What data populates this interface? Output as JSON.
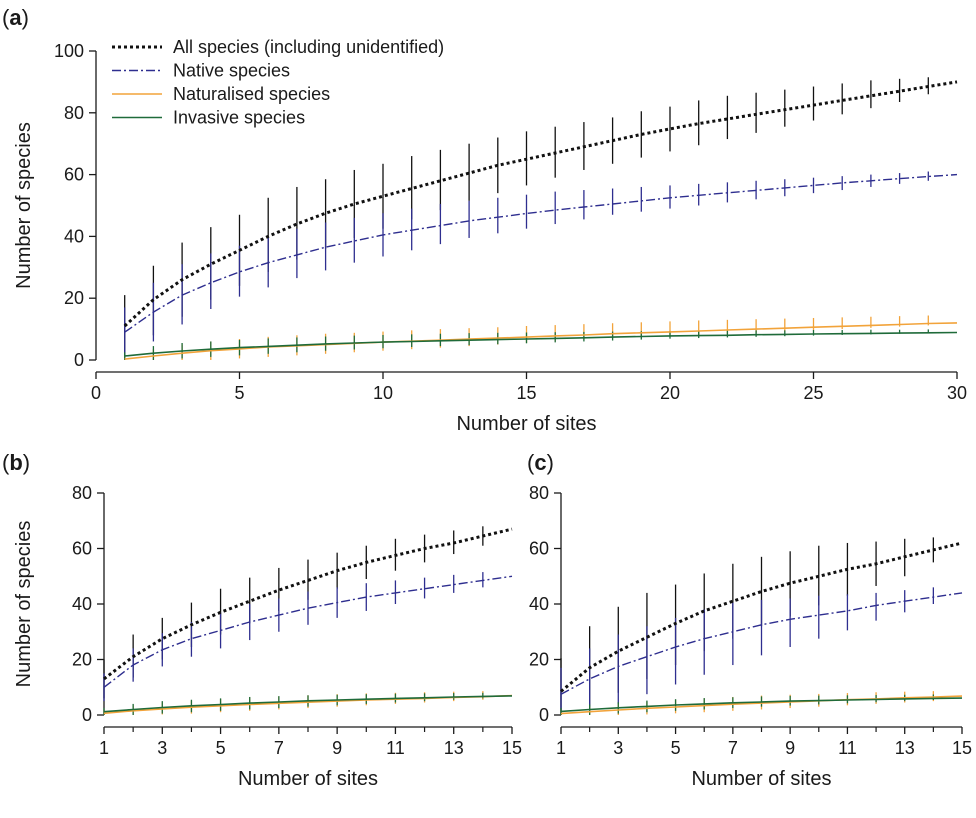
{
  "figure": {
    "colors": {
      "all": "#111111",
      "native": "#2e2e8f",
      "naturalised": "#f2a33a",
      "invasive": "#1f6b3a",
      "axis": "#1a1a1a"
    }
  },
  "chart_data": [
    {
      "panel": "(a)",
      "panel_label": {
        "open": "(",
        "letter": "a",
        "close": ")"
      },
      "type": "line",
      "xlabel": "Number of sites",
      "ylabel": "Number of species",
      "xlim": [
        0,
        30
      ],
      "ylim": [
        0,
        100
      ],
      "xticks": [
        0,
        5,
        10,
        15,
        20,
        25,
        30
      ],
      "yticks": [
        0,
        20,
        40,
        60,
        80,
        100
      ],
      "legend": "top-left",
      "x": [
        1,
        2,
        3,
        4,
        5,
        6,
        7,
        8,
        9,
        10,
        11,
        12,
        13,
        14,
        15,
        16,
        17,
        18,
        19,
        20,
        21,
        22,
        23,
        24,
        25,
        26,
        27,
        28,
        29,
        30
      ],
      "series": [
        {
          "key": "all",
          "name": "All species (including unidentified)",
          "style": "dotted",
          "values": [
            11.0,
            19.5,
            26.0,
            31.0,
            35.5,
            40.0,
            44.0,
            47.5,
            50.5,
            53.0,
            55.5,
            58.0,
            60.5,
            63.0,
            65.0,
            67.0,
            69.0,
            71.0,
            73.0,
            74.8,
            76.5,
            78.0,
            79.5,
            81.0,
            82.5,
            84.0,
            85.5,
            87.0,
            88.5,
            90.0
          ],
          "lower": [
            1.0,
            8.0,
            14.0,
            19.5,
            24.0,
            28.5,
            32.5,
            36.0,
            39.5,
            42.5,
            45.5,
            48.5,
            51.5,
            54.0,
            56.5,
            59.0,
            61.5,
            63.5,
            65.5,
            67.5,
            69.5,
            71.5,
            73.5,
            75.5,
            77.5,
            79.5,
            81.5,
            83.5,
            86.0,
            90.0
          ],
          "upper": [
            21.0,
            30.5,
            38.0,
            43.0,
            47.0,
            52.5,
            56.0,
            58.5,
            61.5,
            63.5,
            66.0,
            68.0,
            70.0,
            72.0,
            74.0,
            75.5,
            77.0,
            78.5,
            80.5,
            82.0,
            84.0,
            85.5,
            86.5,
            87.5,
            88.5,
            89.5,
            90.5,
            91.0,
            91.5,
            90.0
          ]
        },
        {
          "key": "native",
          "name": "Native species",
          "style": "dashdot",
          "values": [
            9.0,
            15.5,
            21.0,
            25.0,
            28.5,
            31.5,
            34.0,
            36.5,
            38.5,
            40.5,
            42.0,
            43.5,
            45.0,
            46.2,
            47.4,
            48.5,
            49.5,
            50.5,
            51.5,
            52.5,
            53.3,
            54.1,
            54.9,
            55.7,
            56.5,
            57.3,
            58.0,
            58.7,
            59.4,
            60.0
          ],
          "lower": [
            0.5,
            6.0,
            11.5,
            16.5,
            20.5,
            23.5,
            26.5,
            29.0,
            31.5,
            33.5,
            35.5,
            37.5,
            39.5,
            41.0,
            42.5,
            44.0,
            45.5,
            47.0,
            48.0,
            49.0,
            50.0,
            51.0,
            52.0,
            53.0,
            54.0,
            55.0,
            56.0,
            57.0,
            58.0,
            60.0
          ],
          "upper": [
            17.0,
            25.0,
            31.0,
            34.5,
            37.0,
            40.0,
            42.5,
            44.5,
            46.0,
            47.5,
            49.0,
            50.5,
            51.5,
            52.5,
            53.5,
            54.5,
            55.0,
            55.5,
            56.0,
            56.5,
            57.0,
            57.5,
            58.0,
            58.5,
            59.0,
            59.5,
            60.0,
            60.5,
            61.0,
            60.0
          ]
        },
        {
          "key": "naturalised",
          "name": "Naturalised species",
          "style": "solid",
          "values": [
            0.3,
            1.3,
            2.2,
            3.0,
            3.6,
            4.2,
            4.6,
            5.0,
            5.4,
            5.8,
            6.1,
            6.4,
            6.8,
            7.1,
            7.4,
            7.8,
            8.1,
            8.5,
            8.8,
            9.1,
            9.4,
            9.7,
            10.0,
            10.3,
            10.6,
            10.9,
            11.2,
            11.5,
            11.8,
            12.0
          ],
          "lower": [
            0.0,
            0.0,
            0.0,
            0.0,
            0.5,
            1.0,
            1.5,
            2.0,
            2.5,
            3.0,
            3.5,
            4.0,
            4.5,
            5.0,
            5.5,
            6.0,
            6.5,
            7.0,
            7.3,
            7.6,
            8.0,
            8.4,
            8.8,
            9.2,
            9.6,
            10.0,
            10.4,
            10.8,
            11.2,
            12.0
          ],
          "upper": [
            1.5,
            3.5,
            5.0,
            6.0,
            6.8,
            7.5,
            8.0,
            8.5,
            8.8,
            9.2,
            9.6,
            10.0,
            10.3,
            10.6,
            11.0,
            11.3,
            11.6,
            11.9,
            12.2,
            12.5,
            12.8,
            13.0,
            13.2,
            13.4,
            13.6,
            13.8,
            14.0,
            14.2,
            14.4,
            12.0
          ]
        },
        {
          "key": "invasive",
          "name": "Invasive species",
          "style": "solid",
          "values": [
            1.3,
            2.2,
            2.9,
            3.5,
            4.0,
            4.4,
            4.8,
            5.2,
            5.5,
            5.8,
            6.0,
            6.2,
            6.4,
            6.6,
            6.8,
            7.0,
            7.2,
            7.4,
            7.6,
            7.8,
            7.9,
            8.0,
            8.2,
            8.3,
            8.4,
            8.5,
            8.6,
            8.7,
            8.8,
            8.9
          ],
          "lower": [
            0.0,
            0.0,
            0.5,
            1.0,
            1.5,
            2.0,
            2.5,
            3.0,
            3.4,
            3.8,
            4.2,
            4.5,
            4.8,
            5.1,
            5.4,
            5.7,
            6.0,
            6.3,
            6.6,
            6.9,
            7.1,
            7.3,
            7.5,
            7.7,
            7.9,
            8.1,
            8.3,
            8.5,
            8.7,
            8.9
          ],
          "upper": [
            2.5,
            4.5,
            5.5,
            6.0,
            6.5,
            7.0,
            7.3,
            7.6,
            7.9,
            8.1,
            8.3,
            8.5,
            8.7,
            8.8,
            8.9,
            9.0,
            9.1,
            9.2,
            9.3,
            9.4,
            9.5,
            9.5,
            9.6,
            9.6,
            9.7,
            9.7,
            9.8,
            9.8,
            9.9,
            8.9
          ]
        }
      ]
    },
    {
      "panel": "(b)",
      "panel_label": {
        "open": "(",
        "letter": "b",
        "close": ")"
      },
      "type": "line",
      "xlabel": "Number of sites",
      "ylabel": "Number of species",
      "xlim": [
        1,
        15
      ],
      "ylim": [
        0,
        80
      ],
      "xticks": [
        1,
        3,
        5,
        7,
        9,
        11,
        13,
        15
      ],
      "xticks_minor": [
        2,
        4,
        6,
        8,
        10,
        12,
        14
      ],
      "yticks": [
        0,
        20,
        40,
        60,
        80
      ],
      "x": [
        1,
        2,
        3,
        4,
        5,
        6,
        7,
        8,
        9,
        10,
        11,
        12,
        13,
        14,
        15
      ],
      "series": [
        {
          "key": "all",
          "style": "dotted",
          "values": [
            13.0,
            21.0,
            27.5,
            32.5,
            37.0,
            41.0,
            45.0,
            48.5,
            52.0,
            55.0,
            57.5,
            60.0,
            62.0,
            64.5,
            67.0
          ],
          "lower": [
            6.0,
            13.5,
            20.0,
            24.5,
            29.0,
            33.0,
            37.5,
            41.5,
            45.5,
            49.0,
            52.0,
            55.0,
            58.0,
            61.0,
            67.0
          ],
          "upper": [
            20.0,
            29.0,
            35.0,
            40.5,
            45.5,
            49.5,
            53.0,
            56.0,
            58.5,
            61.0,
            63.5,
            65.0,
            66.5,
            68.0,
            67.0
          ]
        },
        {
          "key": "native",
          "style": "dashdot",
          "values": [
            10.0,
            18.0,
            23.5,
            27.5,
            30.5,
            33.5,
            36.0,
            38.5,
            40.5,
            42.5,
            44.0,
            45.5,
            47.0,
            48.5,
            50.0
          ],
          "lower": [
            5.0,
            12.0,
            17.5,
            21.0,
            24.0,
            27.0,
            30.0,
            32.5,
            35.0,
            37.5,
            40.0,
            42.0,
            44.0,
            46.0,
            50.0
          ],
          "upper": [
            15.0,
            24.0,
            29.5,
            33.5,
            37.0,
            40.0,
            42.0,
            44.5,
            46.0,
            47.5,
            48.5,
            49.5,
            50.5,
            51.5,
            50.0
          ]
        },
        {
          "key": "naturalised",
          "style": "solid",
          "values": [
            0.6,
            1.5,
            2.2,
            2.8,
            3.3,
            3.8,
            4.2,
            4.6,
            5.0,
            5.4,
            5.7,
            6.0,
            6.3,
            6.6,
            7.0
          ],
          "lower": [
            0.0,
            0.0,
            0.2,
            0.5,
            1.0,
            1.5,
            2.0,
            2.5,
            3.0,
            3.5,
            4.0,
            4.5,
            5.0,
            5.5,
            7.0
          ],
          "upper": [
            2.0,
            3.5,
            4.5,
            5.2,
            5.8,
            6.3,
            6.7,
            7.1,
            7.5,
            7.8,
            8.0,
            8.2,
            8.4,
            8.6,
            7.0
          ]
        },
        {
          "key": "invasive",
          "style": "solid",
          "values": [
            1.2,
            2.0,
            2.7,
            3.3,
            3.8,
            4.3,
            4.7,
            5.1,
            5.4,
            5.7,
            6.0,
            6.2,
            6.5,
            6.7,
            6.9
          ],
          "lower": [
            0.0,
            0.0,
            0.5,
            1.0,
            1.5,
            2.0,
            2.5,
            3.0,
            3.5,
            4.0,
            4.5,
            5.0,
            5.5,
            6.0,
            6.9
          ],
          "upper": [
            2.5,
            4.0,
            5.0,
            5.5,
            6.0,
            6.5,
            6.8,
            7.1,
            7.3,
            7.5,
            7.7,
            7.8,
            7.9,
            8.0,
            6.9
          ]
        }
      ]
    },
    {
      "panel": "(c)",
      "panel_label": {
        "open": "(",
        "letter": "c",
        "close": ")"
      },
      "type": "line",
      "xlabel": "Number of sites",
      "xlim": [
        1,
        15
      ],
      "ylim": [
        0,
        80
      ],
      "xticks": [
        1,
        3,
        5,
        7,
        9,
        11,
        13,
        15
      ],
      "xticks_minor": [
        2,
        4,
        6,
        8,
        10,
        12,
        14
      ],
      "yticks": [
        0,
        20,
        40,
        60,
        80
      ],
      "x": [
        1,
        2,
        3,
        4,
        5,
        6,
        7,
        8,
        9,
        10,
        11,
        12,
        13,
        14,
        15
      ],
      "series": [
        {
          "key": "all",
          "style": "dotted",
          "values": [
            8.5,
            17.0,
            23.0,
            28.0,
            33.0,
            37.5,
            41.0,
            44.5,
            47.5,
            50.0,
            52.5,
            54.5,
            57.0,
            59.5,
            62.0
          ],
          "lower": [
            0.0,
            2.0,
            8.0,
            13.0,
            18.0,
            23.0,
            27.5,
            32.0,
            35.5,
            39.5,
            43.0,
            46.5,
            50.0,
            55.0,
            62.0
          ],
          "upper": [
            20.5,
            32.0,
            39.0,
            44.0,
            47.0,
            51.0,
            54.5,
            57.0,
            59.0,
            61.0,
            62.0,
            62.5,
            63.5,
            64.0,
            62.0
          ]
        },
        {
          "key": "native",
          "style": "dashdot",
          "values": [
            7.5,
            13.0,
            17.5,
            21.0,
            24.5,
            27.5,
            30.0,
            32.5,
            34.5,
            36.0,
            37.5,
            39.5,
            41.0,
            42.5,
            44.0
          ],
          "lower": [
            0.0,
            0.5,
            4.0,
            7.5,
            11.0,
            14.5,
            18.0,
            21.5,
            24.5,
            27.5,
            30.5,
            34.0,
            37.0,
            40.0,
            44.0
          ],
          "upper": [
            17.0,
            24.0,
            29.0,
            32.0,
            35.0,
            38.0,
            40.5,
            41.5,
            42.0,
            43.0,
            43.5,
            44.0,
            45.0,
            46.0,
            44.0
          ]
        },
        {
          "key": "naturalised",
          "style": "solid",
          "values": [
            0.5,
            1.2,
            1.8,
            2.4,
            2.9,
            3.4,
            3.9,
            4.3,
            4.7,
            5.1,
            5.5,
            5.8,
            6.2,
            6.5,
            6.8
          ],
          "lower": [
            0.0,
            0.0,
            0.0,
            0.2,
            0.6,
            1.0,
            1.5,
            2.0,
            2.5,
            3.0,
            3.5,
            4.0,
            4.5,
            5.0,
            6.8
          ],
          "upper": [
            2.0,
            3.0,
            4.0,
            4.8,
            5.5,
            6.0,
            6.5,
            7.0,
            7.3,
            7.6,
            7.9,
            8.2,
            8.4,
            8.6,
            6.8
          ]
        },
        {
          "key": "invasive",
          "style": "solid",
          "values": [
            1.3,
            2.0,
            2.6,
            3.1,
            3.6,
            4.0,
            4.4,
            4.7,
            5.0,
            5.2,
            5.4,
            5.6,
            5.8,
            6.0,
            6.1
          ],
          "lower": [
            0.0,
            0.0,
            0.5,
            1.0,
            1.5,
            2.0,
            2.5,
            3.0,
            3.4,
            3.8,
            4.2,
            4.6,
            5.0,
            5.4,
            6.1
          ],
          "upper": [
            2.5,
            3.8,
            4.6,
            5.2,
            5.7,
            6.1,
            6.4,
            6.7,
            6.9,
            7.0,
            7.1,
            7.2,
            7.3,
            7.4,
            6.1
          ]
        }
      ]
    }
  ]
}
